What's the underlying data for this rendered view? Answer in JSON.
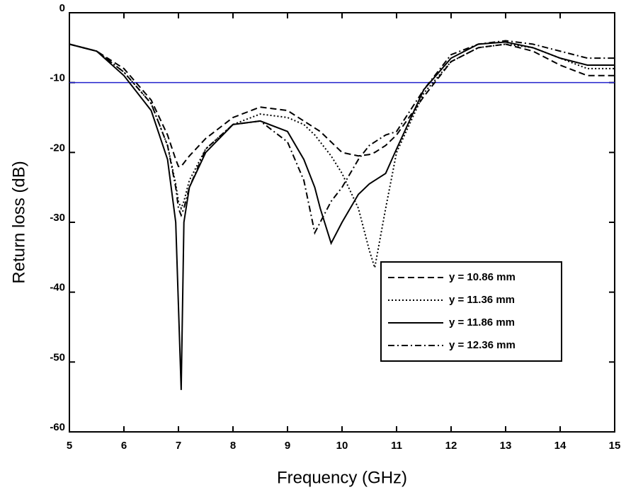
{
  "chart_data": {
    "type": "line",
    "xlabel": "Frequency (GHz)",
    "ylabel": "Return loss (dB)",
    "x": [
      5,
      5.5,
      6,
      6.5,
      6.8,
      6.95,
      7,
      7.05,
      7.1,
      7.2,
      7.5,
      8,
      8.5,
      9,
      9.3,
      9.5,
      9.6,
      9.8,
      10,
      10.3,
      10.5,
      10.6,
      10.8,
      11,
      11.5,
      12,
      12.5,
      13,
      13.5,
      14,
      14.5,
      15
    ],
    "series": [
      {
        "name": "y = 10.86 mm",
        "color": "#000000",
        "line_style": "dashed",
        "values": [
          -4.5,
          -5.5,
          -8,
          -12.5,
          -17.5,
          -21,
          -22,
          -22,
          -21.5,
          -20.5,
          -18,
          -15,
          -13.5,
          -14,
          -15.5,
          -16.5,
          -17,
          -18.5,
          -20,
          -20.5,
          -20.3,
          -20,
          -19,
          -17.5,
          -12,
          -7,
          -5,
          -4.5,
          -5.5,
          -7.5,
          -9,
          -9
        ]
      },
      {
        "name": "y = 11.36 mm",
        "color": "#000000",
        "line_style": "dotted",
        "values": [
          -4.5,
          -5.5,
          -8.5,
          -13,
          -19,
          -24.5,
          -27,
          -28,
          -27,
          -24,
          -19.5,
          -16,
          -14.5,
          -15,
          -16,
          -17.5,
          -18.5,
          -20.5,
          -23,
          -28,
          -34,
          -36.5,
          -28,
          -20,
          -11.5,
          -7,
          -5,
          -4.5,
          -5,
          -6.5,
          -8,
          -8
        ]
      },
      {
        "name": "y = 11.86 mm",
        "color": "#000000",
        "line_style": "solid",
        "values": [
          -4.5,
          -5.5,
          -9,
          -14,
          -21,
          -30,
          -42,
          -54,
          -30,
          -25,
          -20,
          -16,
          -15.5,
          -17,
          -21,
          -25,
          -28,
          -33,
          -30,
          -26,
          -24.5,
          -24,
          -23,
          -19.5,
          -11,
          -6.5,
          -4.5,
          -4.2,
          -5,
          -6.5,
          -7.5,
          -7.5
        ]
      },
      {
        "name": "y = 12.36 mm",
        "color": "#000000",
        "line_style": "dashdot",
        "values": [
          -4.5,
          -5.5,
          -8.5,
          -13,
          -19,
          -25,
          -28,
          -29,
          -28,
          -25,
          -19.5,
          -16,
          -15.5,
          -18.5,
          -24,
          -31.5,
          -30,
          -27,
          -25,
          -21,
          -19,
          -18.5,
          -17.5,
          -17,
          -11,
          -6,
          -4.5,
          -4,
          -4.5,
          -5.5,
          -6.5,
          -6.5
        ]
      }
    ],
    "reference_line": {
      "value": -10,
      "color": "#2222cc"
    },
    "xlim": [
      5,
      15
    ],
    "ylim": [
      -60,
      0
    ],
    "xticks": [
      5,
      6,
      7,
      8,
      9,
      10,
      11,
      12,
      13,
      14,
      15
    ],
    "yticks": [
      -60,
      -50,
      -40,
      -30,
      -20,
      -10,
      0
    ],
    "legend": "lower right"
  }
}
